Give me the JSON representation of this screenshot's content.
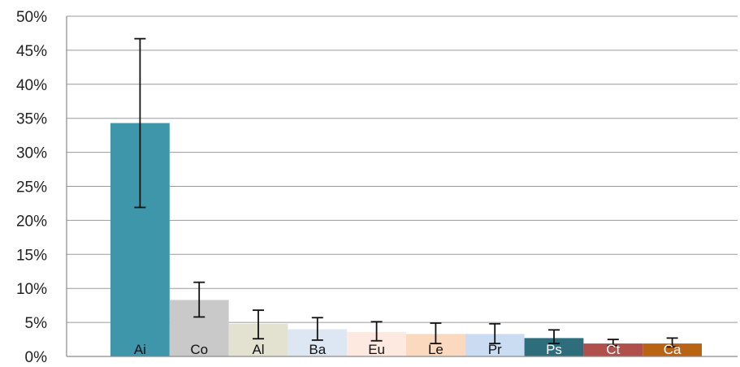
{
  "chart_data": {
    "type": "bar",
    "categories": [
      "Ai",
      "Co",
      "Al",
      "Ba",
      "Eu",
      "Le",
      "Pr",
      "Ps",
      "Ct",
      "Ca"
    ],
    "values": [
      34.3,
      8.3,
      4.8,
      4.0,
      3.6,
      3.3,
      3.3,
      2.7,
      1.9,
      1.9
    ],
    "error_low": [
      21.9,
      5.8,
      2.6,
      2.4,
      2.3,
      1.9,
      1.9,
      1.9,
      1.6,
      1.4
    ],
    "error_high": [
      46.7,
      10.9,
      6.8,
      5.7,
      5.1,
      4.9,
      4.8,
      3.9,
      2.5,
      2.7
    ],
    "bar_colors": [
      "#3e96ab",
      "#c9c9c9",
      "#e3e1d0",
      "#dde7f3",
      "#fde9df",
      "#fbd9bf",
      "#cadcf1",
      "#2e6d7b",
      "#b04f4c",
      "#bb6314"
    ],
    "label_colors": [
      "#111111",
      "#111111",
      "#111111",
      "#111111",
      "#111111",
      "#111111",
      "#111111",
      "#ffffff",
      "#ffffff",
      "#ffffff"
    ],
    "y_ticks": [
      "0%",
      "5%",
      "10%",
      "15%",
      "20%",
      "25%",
      "30%",
      "35%",
      "40%",
      "45%",
      "50%"
    ],
    "ylim": [
      0,
      50
    ],
    "grid": true,
    "title": "",
    "xlabel": "",
    "ylabel": ""
  }
}
